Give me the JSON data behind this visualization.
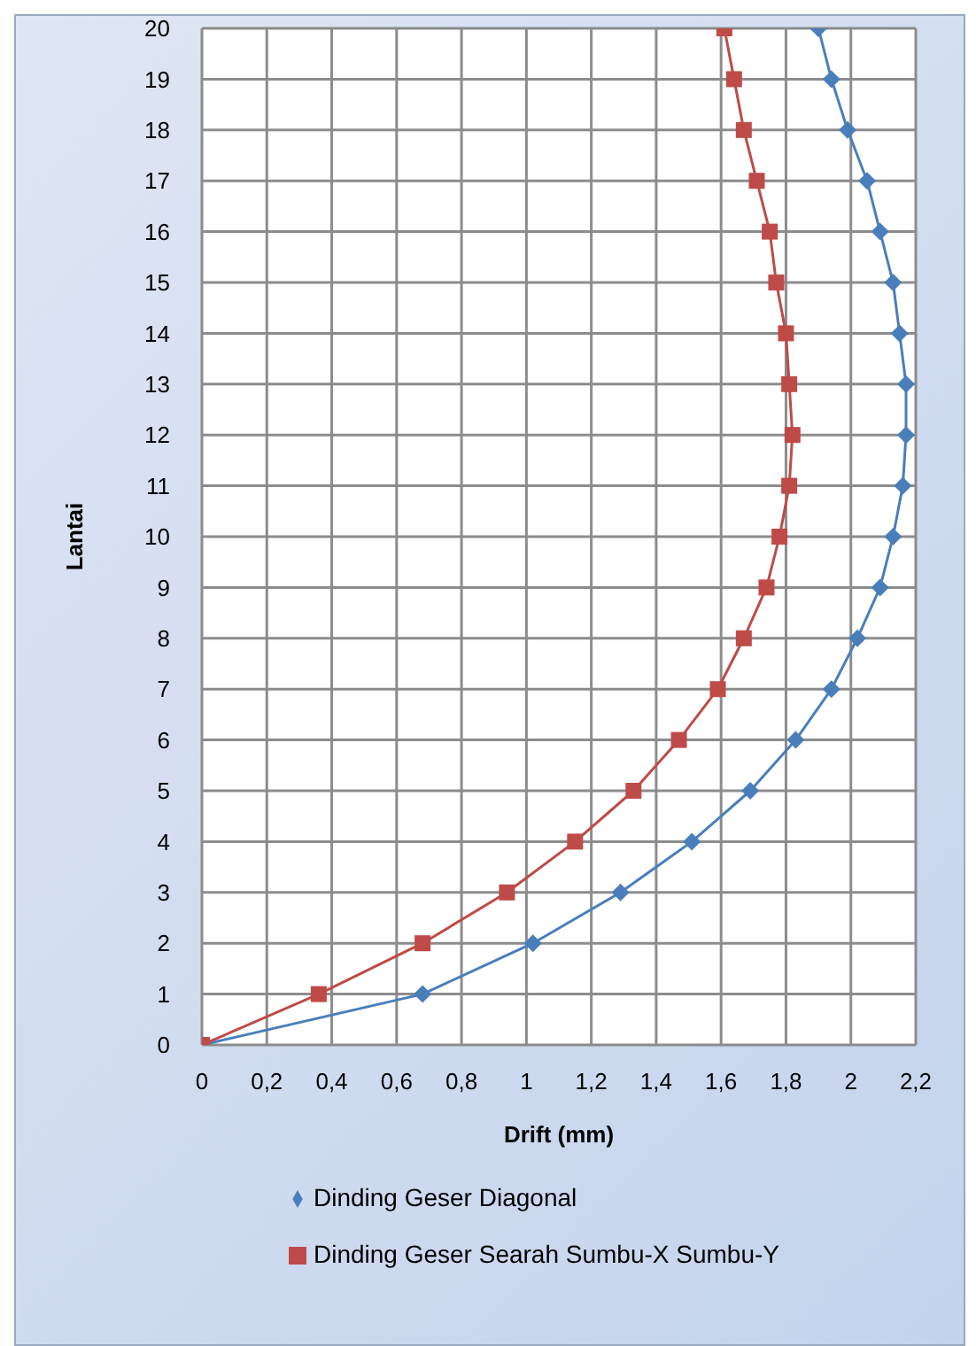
{
  "chart_data": {
    "type": "line",
    "xlabel": "Drift (mm)",
    "ylabel": "Lantai",
    "xlim": [
      0,
      2.2
    ],
    "xticks": [
      0,
      {
        "value": 0.2,
        "label": "0,2"
      },
      {
        "value": 0.4,
        "label": "0,4"
      },
      {
        "value": 0.6,
        "label": "0,6"
      },
      {
        "value": 0.8,
        "label": "0,8"
      },
      1,
      {
        "value": 1.2,
        "label": "1,2"
      },
      {
        "value": 1.4,
        "label": "1,4"
      },
      {
        "value": 1.6,
        "label": "1,6"
      },
      {
        "value": 1.8,
        "label": "1,8"
      },
      2,
      {
        "value": 2.2,
        "label": "2,2"
      }
    ],
    "ylim": [
      0,
      20
    ],
    "yticks": [
      0,
      1,
      2,
      3,
      4,
      5,
      6,
      7,
      8,
      9,
      10,
      11,
      12,
      13,
      14,
      15,
      16,
      17,
      18,
      19,
      20
    ],
    "grid": true,
    "legend": "bottom",
    "line_style": "solid",
    "series": [
      {
        "name": "Dinding Geser Diagonal",
        "color": "#4a7ebb",
        "marker": "diamond",
        "x": [
          0,
          0.68,
          1.02,
          1.29,
          1.51,
          1.69,
          1.83,
          1.94,
          2.02,
          2.09,
          2.13,
          2.16,
          2.17,
          2.17,
          2.15,
          2.13,
          2.09,
          2.05,
          1.99,
          1.94,
          1.9
        ],
        "values": [
          0,
          1,
          2,
          3,
          4,
          5,
          6,
          7,
          8,
          9,
          10,
          11,
          12,
          13,
          14,
          15,
          16,
          17,
          18,
          19,
          20
        ]
      },
      {
        "name": "Dinding Geser Searah Sumbu-X Sumbu-Y",
        "color": "#be4b48",
        "marker": "square",
        "x": [
          0,
          0.36,
          0.68,
          0.94,
          1.15,
          1.33,
          1.47,
          1.59,
          1.67,
          1.74,
          1.78,
          1.81,
          1.82,
          1.81,
          1.8,
          1.77,
          1.75,
          1.71,
          1.67,
          1.64,
          1.61
        ],
        "values": [
          0,
          1,
          2,
          3,
          4,
          5,
          6,
          7,
          8,
          9,
          10,
          11,
          12,
          13,
          14,
          15,
          16,
          17,
          18,
          19,
          20
        ]
      }
    ]
  }
}
